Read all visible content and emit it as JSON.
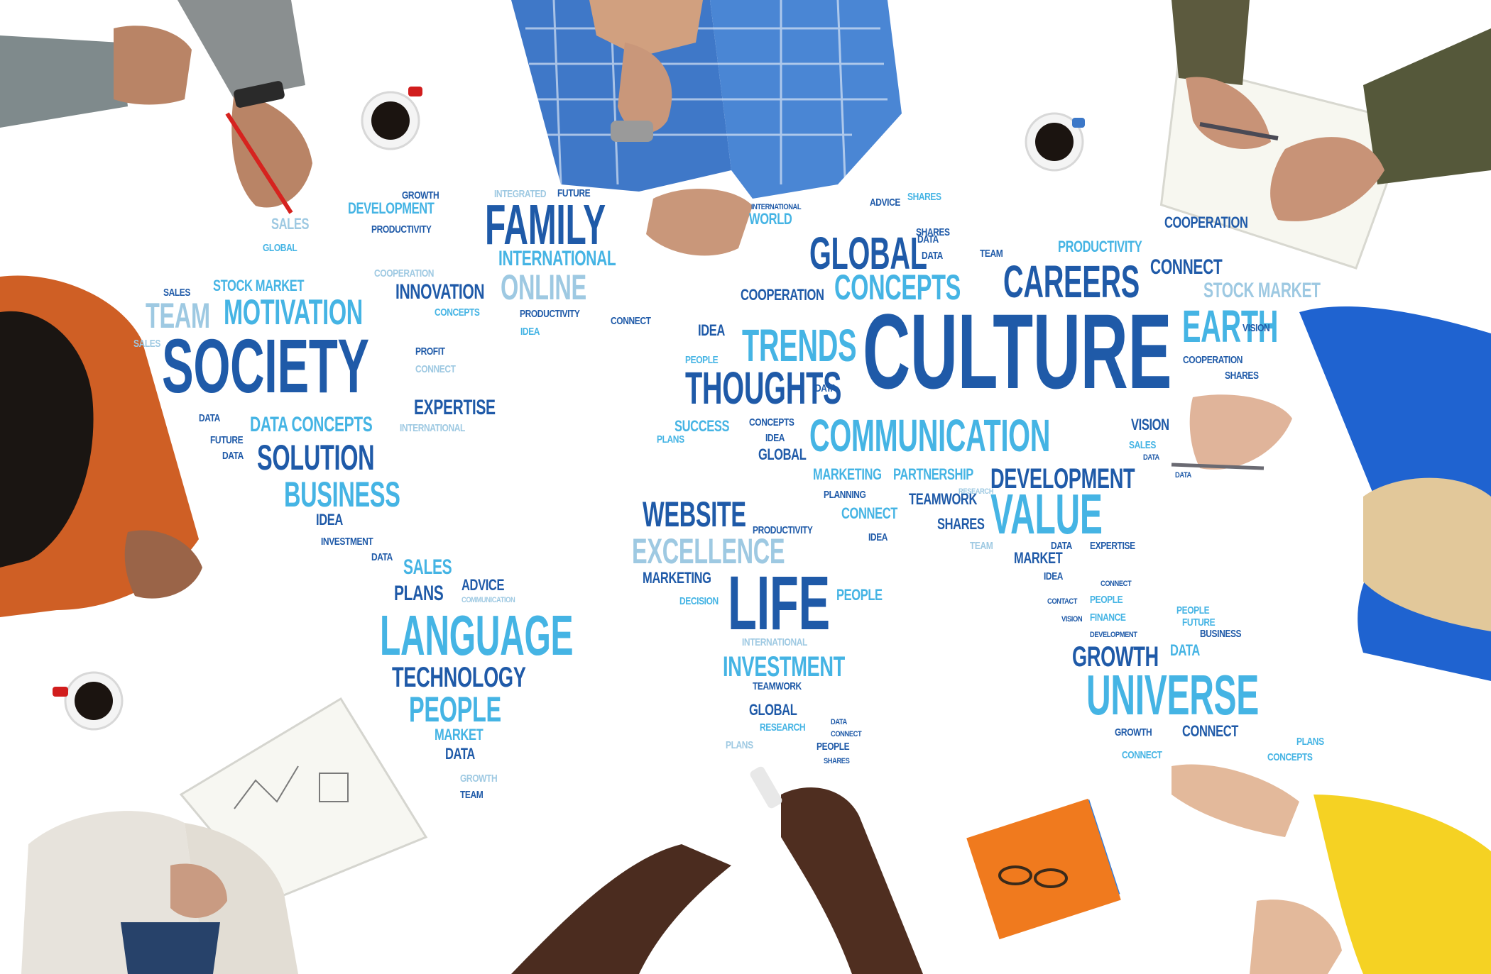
{
  "image": {
    "colors": {
      "background": "#ffffff",
      "dark_blue": "#1f5aa8",
      "mid_blue": "#2f7fd0",
      "light_blue": "#45b4e4",
      "pale_blue": "#9ec9e2"
    },
    "words": {
      "culture": "CULTURE",
      "society": "SOCIETY",
      "life": "LIFE",
      "communication": "COMMUNICATION",
      "value": "VALUE",
      "universe": "UNIVERSE",
      "language": "LANGUAGE",
      "family": "FAMILY",
      "thoughts": "THOUGHTS",
      "trends": "TRENDS",
      "careers": "CAREERS",
      "earth": "EARTH",
      "global": "GLOBAL",
      "concepts": "CONCEPTS",
      "motivation": "MOTIVATION",
      "solution": "SOLUTION",
      "business": "BUSINESS",
      "people": "PEOPLE",
      "technology": "TECHNOLOGY",
      "website": "WEBSITE",
      "excellence": "EXCELLENCE",
      "investment": "INVESTMENT",
      "development": "DEVELOPMENT",
      "growth": "GROWTH",
      "online": "ONLINE",
      "international": "INTERNATIONAL",
      "team": "TEAM",
      "data_concepts": "DATA CONCEPTS",
      "expertise": "EXPERTISE",
      "innovation": "INNOVATION",
      "stock_market": "STOCK MARKET",
      "sales": "SALES",
      "plans": "PLANS",
      "advice": "ADVICE",
      "marketing": "MARKETING",
      "decision": "DECISION",
      "teamwork": "TEAMWORK",
      "research": "RESEARCH",
      "connect": "CONNECT",
      "shares": "SHARES",
      "idea": "IDEA",
      "data": "DATA",
      "productivity": "PRODUCTIVITY",
      "cooperation": "COOPERATION",
      "partnership": "PARTNERSHIP",
      "planning": "PLANNING",
      "market": "MARKET",
      "success": "SUCCESS",
      "vision": "VISION",
      "world": "WORLD",
      "profit": "PROFIT",
      "future": "FUTURE",
      "integrated": "INTEGRATED",
      "communication_small": "COMMUNICATION",
      "finance": "FINANCE",
      "contact": "CONTACT"
    }
  }
}
